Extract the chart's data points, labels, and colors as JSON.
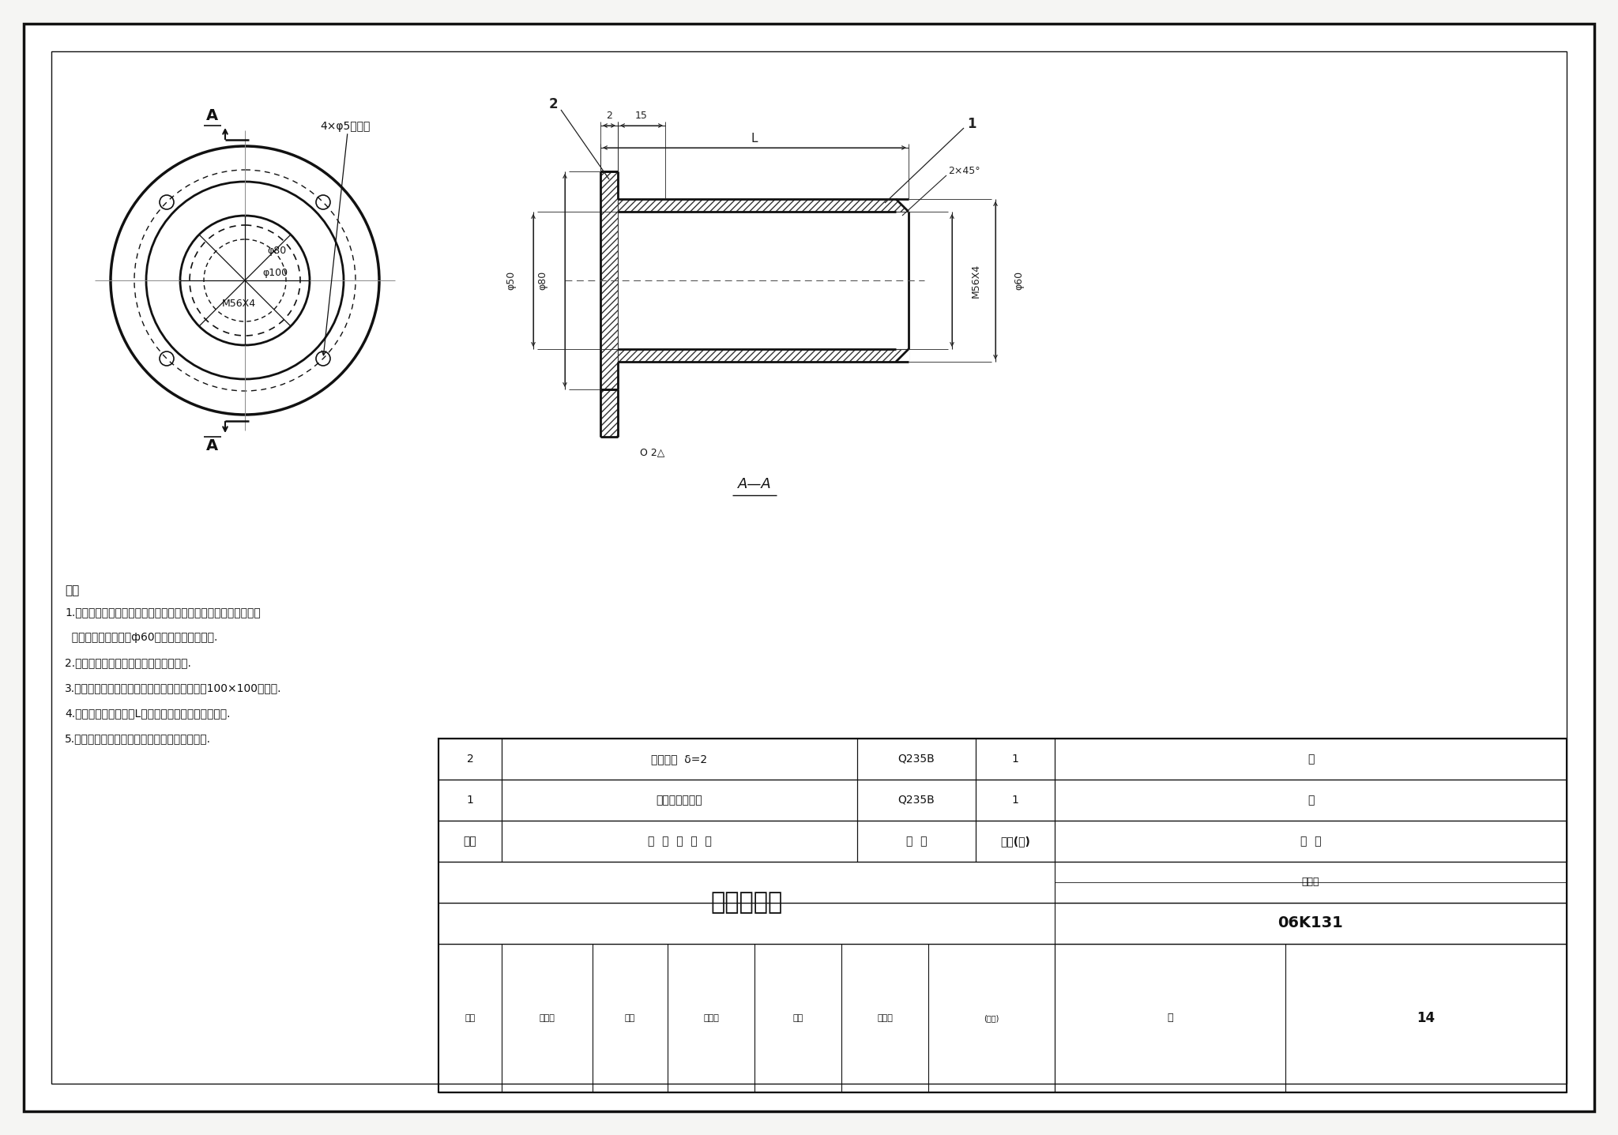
{
  "bg_color": "#f5f5f3",
  "line_color": "#111111",
  "title": "风量测量孔",
  "drawing_number": "06K131",
  "page": "14",
  "note_title": "注：",
  "notes": [
    "1.测量孔装于圆弧壁面时，要将连接圈环先做成圆弧形，再做与测",
    "  量孔矩管外径匹配的ф60圆形孔，并焊接制成.",
    "2.连接圈环周边必须清除毛刺，锐角倒钝.",
    "3.若测量孔连接圈环加工有困难时，外边可以做100×100的方形.",
    "4.风量测量孔矩管长度L应大于或等于风管保温层厚度.",
    "5.根据需要，材料可改为不锈钢或其他材料制作."
  ]
}
